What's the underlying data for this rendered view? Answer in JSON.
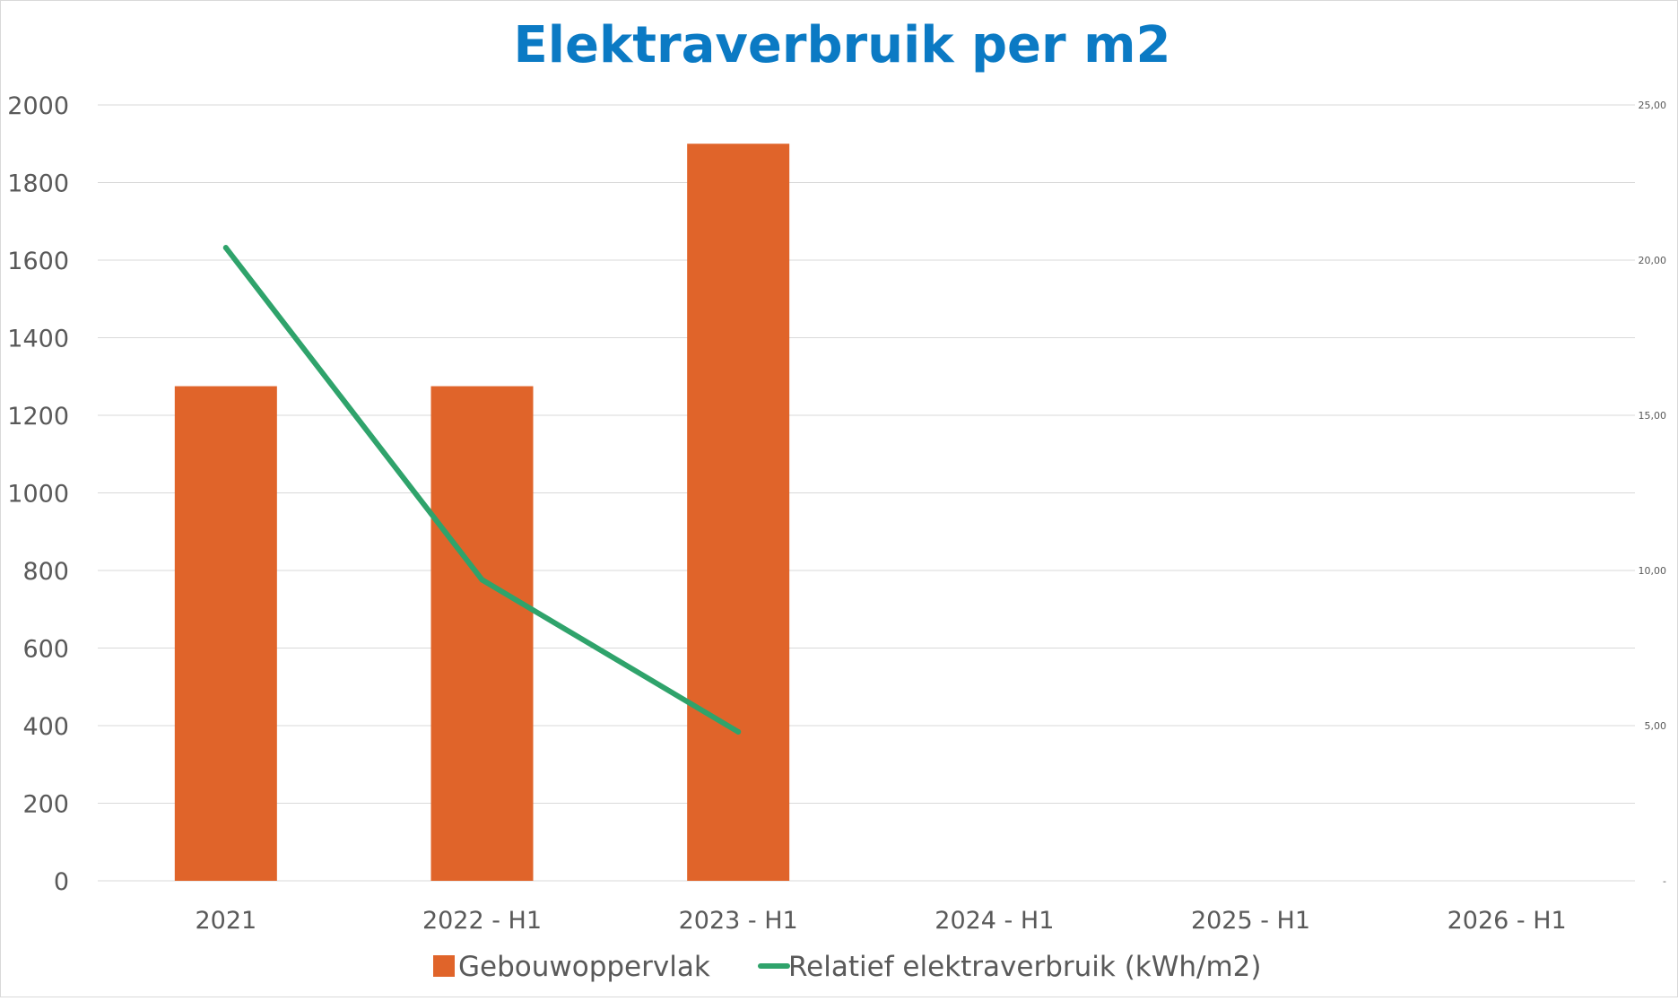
{
  "chart_data": {
    "type": "bar",
    "title": "Elektraverbruik per m2",
    "categories": [
      "2021",
      "2022 - H1",
      "2023 - H1",
      "2024 - H1",
      "2025 - H1",
      "2026 - H1"
    ],
    "series": [
      {
        "name": "Gebouwoppervlak",
        "type": "bar",
        "axis": "left",
        "color": "#e0642a",
        "values": [
          1275,
          1275,
          1900,
          null,
          null,
          null
        ]
      },
      {
        "name": "Relatief elektraverbruik (kWh/m2)",
        "type": "line",
        "axis": "right",
        "color": "#2fa36b",
        "values": [
          20.4,
          9.7,
          4.8,
          null,
          null,
          null
        ]
      }
    ],
    "y_left": {
      "min": 0,
      "max": 2000,
      "ticks": [
        "0",
        "200",
        "400",
        "600",
        "800",
        "1000",
        "1200",
        "1400",
        "1600",
        "1800",
        "2000"
      ]
    },
    "y_right": {
      "min": 0,
      "max": 25,
      "ticks": [
        "-",
        "5,00",
        "10,00",
        "15,00",
        "20,00",
        "25,00"
      ]
    },
    "grid": true,
    "legend": "bottom"
  }
}
